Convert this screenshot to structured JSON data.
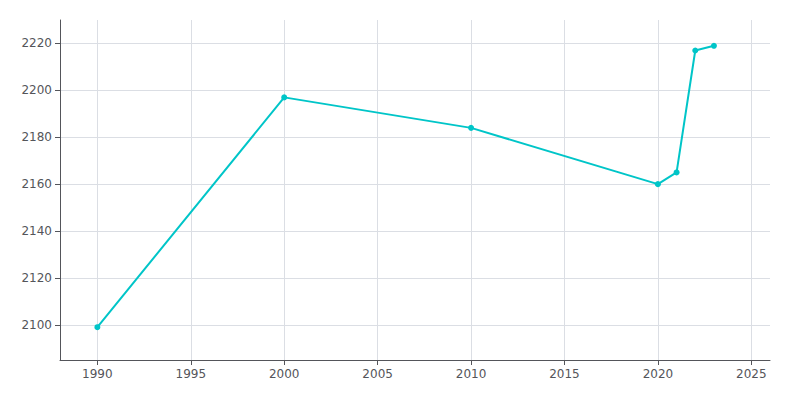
{
  "chart_data": {
    "type": "line",
    "x": [
      1990,
      2000,
      2010,
      2020,
      2021,
      2022,
      2023
    ],
    "values": [
      2099,
      2197,
      2184,
      2160,
      2165,
      2217,
      2219
    ],
    "color": "#00C5C8",
    "marker": "circle",
    "xlim": [
      1988,
      2026
    ],
    "xticks": [
      1990,
      1995,
      2000,
      2005,
      2010,
      2015,
      2020,
      2025
    ],
    "ylim": [
      2085,
      2230
    ],
    "yticks": [
      2100,
      2120,
      2140,
      2160,
      2180,
      2200,
      2220
    ],
    "grid": true
  }
}
